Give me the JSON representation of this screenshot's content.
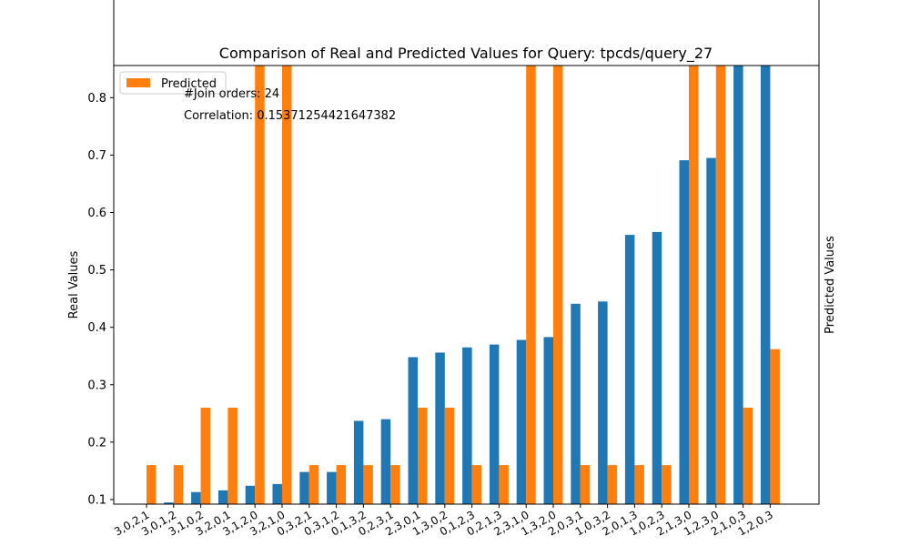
{
  "chart_data": {
    "type": "bar",
    "title": "Comparison of Real and Predicted Values for Query: tpcds/query_27",
    "ylabel_left": "Real Values",
    "ylabel_right": "Predicted Values",
    "annotations": [
      "#Join orders: 24",
      "Correlation: 0.15371254421647382"
    ],
    "legend": {
      "location": "upper-left",
      "entries": [
        "Predicted"
      ]
    },
    "categories": [
      "3,0,2,1",
      "3,0,1,2",
      "3,1,0,2",
      "3,2,0,1",
      "3,1,2,0",
      "3,2,1,0",
      "0,3,2,1",
      "0,3,1,2",
      "0,1,3,2",
      "0,2,3,1",
      "2,3,0,1",
      "1,3,0,2",
      "0,1,2,3",
      "0,2,1,3",
      "2,3,1,0",
      "1,3,2,0",
      "2,0,3,1",
      "1,0,3,2",
      "2,0,1,3",
      "1,0,2,3",
      "2,1,3,0",
      "1,2,3,0",
      "2,1,0,3",
      "1,2,0,3"
    ],
    "series": [
      {
        "name": "",
        "color": "#1f77b4",
        "values": [
          0.085,
          0.095,
          0.113,
          0.116,
          0.124,
          0.127,
          0.148,
          0.148,
          0.237,
          0.24,
          0.348,
          0.356,
          0.365,
          0.37,
          0.378,
          0.383,
          0.441,
          0.445,
          0.561,
          0.566,
          0.691,
          0.695,
          0.9,
          0.9
        ]
      },
      {
        "name": "Predicted",
        "color": "#ff7f0e",
        "values": [
          0.16,
          0.16,
          0.26,
          0.26,
          0.9,
          0.9,
          0.16,
          0.16,
          0.16,
          0.16,
          0.26,
          0.26,
          0.16,
          0.16,
          0.9,
          0.9,
          0.16,
          0.16,
          0.16,
          0.16,
          0.9,
          0.9,
          0.26,
          0.362
        ]
      }
    ],
    "ylim": [
      0.092,
      0.856
    ],
    "yticks": [
      0.1,
      0.2,
      0.3,
      0.4,
      0.5,
      0.6,
      0.7,
      0.8
    ],
    "grid": false
  }
}
